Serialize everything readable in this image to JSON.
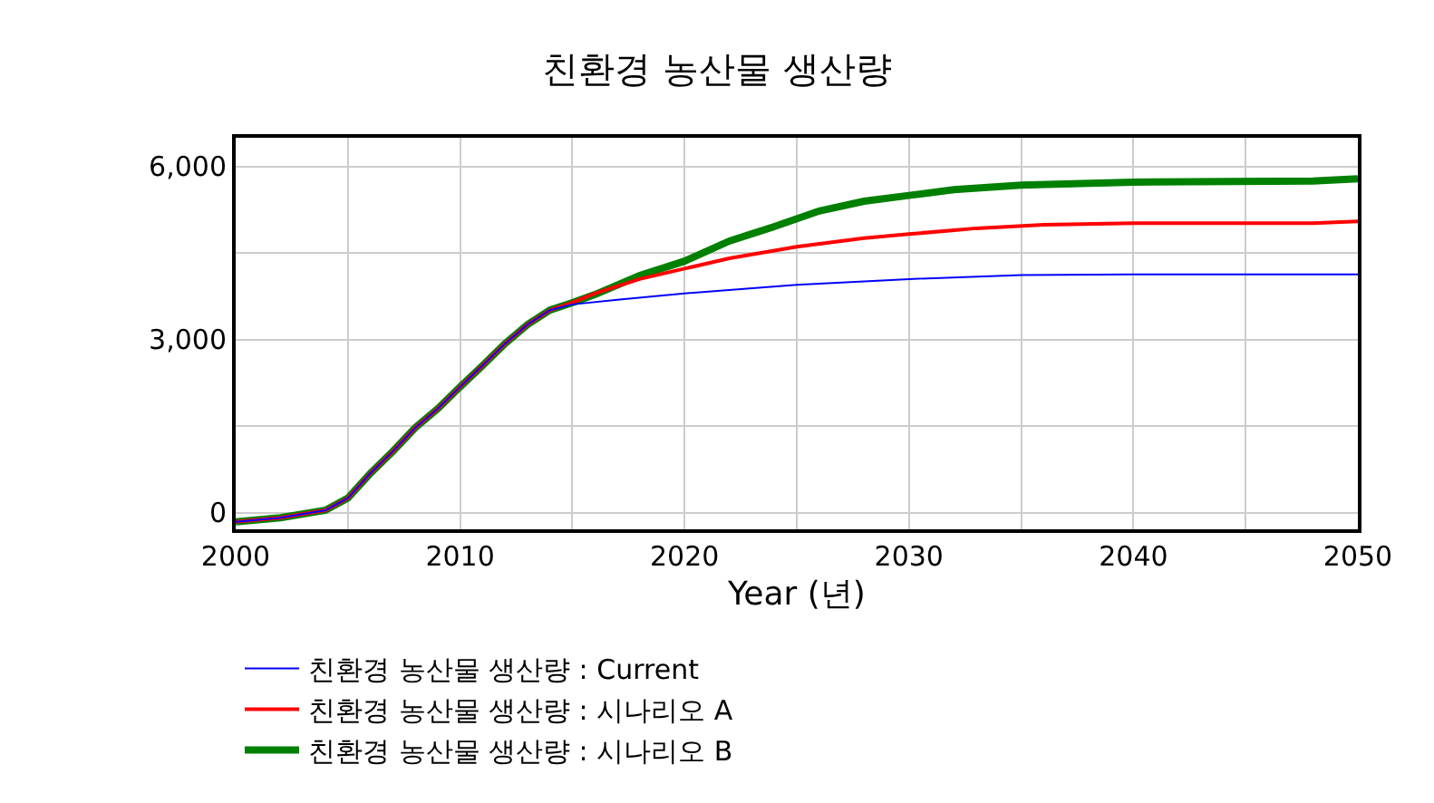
{
  "chart_data": {
    "type": "line",
    "title": "친환경 농산물 생산량",
    "xlabel": "Year (년)",
    "xlim": [
      2000,
      2050
    ],
    "xticks": [
      2000,
      {
        "value": 2005,
        "label": null
      },
      2010,
      {
        "value": 2015,
        "label": null
      },
      2020,
      {
        "value": 2025,
        "label": null
      },
      2030,
      {
        "value": 2035,
        "label": null
      },
      2040,
      {
        "value": 2045,
        "label": null
      },
      2050
    ],
    "ylim": [
      -290,
      6500
    ],
    "yticks": [
      {
        "value": 0,
        "label": "0"
      },
      {
        "value": 1500,
        "label": null
      },
      {
        "value": 3000,
        "label": "3,000"
      },
      {
        "value": 4500,
        "label": null
      },
      {
        "value": 6000,
        "label": "6,000"
      }
    ],
    "grid": true,
    "legend": "bottom",
    "line_style": "solid",
    "series": [
      {
        "name": "친환경 농산물 생산량 : Current",
        "color": "#0000ff",
        "x": [
          2000,
          2002,
          2004,
          2005,
          2006,
          2007,
          2008,
          2009,
          2010,
          2011,
          2012,
          2013,
          2014,
          2015,
          2017,
          2020,
          2025,
          2030,
          2035,
          2040,
          2050
        ],
        "values": [
          -160,
          -90,
          40,
          250,
          680,
          1060,
          1470,
          1800,
          2180,
          2550,
          2930,
          3260,
          3510,
          3610,
          3690,
          3800,
          3950,
          4050,
          4120,
          4130,
          4130
        ]
      },
      {
        "name": "친환경 농산물 생산량 : 시나리오 A",
        "color": "#ff0000",
        "x": [
          2000,
          2002,
          2004,
          2005,
          2006,
          2007,
          2008,
          2009,
          2010,
          2011,
          2012,
          2013,
          2014,
          2015,
          2016,
          2018,
          2020,
          2022,
          2025,
          2028,
          2030,
          2033,
          2036,
          2040,
          2048,
          2050
        ],
        "values": [
          -160,
          -90,
          40,
          250,
          680,
          1060,
          1470,
          1800,
          2180,
          2550,
          2930,
          3260,
          3510,
          3640,
          3800,
          4050,
          4230,
          4410,
          4610,
          4760,
          4830,
          4930,
          4990,
          5020,
          5020,
          5050
        ]
      },
      {
        "name": "친환경 농산물 생산량 : 시나리오 B",
        "color": "#008000",
        "x": [
          2000,
          2002,
          2004,
          2005,
          2006,
          2007,
          2008,
          2009,
          2010,
          2011,
          2012,
          2013,
          2014,
          2015,
          2016,
          2018,
          2020,
          2022,
          2024,
          2026,
          2028,
          2030,
          2032,
          2035,
          2040,
          2048,
          2050
        ],
        "values": [
          -160,
          -90,
          40,
          250,
          680,
          1060,
          1470,
          1800,
          2180,
          2550,
          2930,
          3260,
          3510,
          3640,
          3780,
          4110,
          4360,
          4710,
          4960,
          5230,
          5400,
          5500,
          5600,
          5680,
          5730,
          5750,
          5790
        ]
      }
    ]
  }
}
